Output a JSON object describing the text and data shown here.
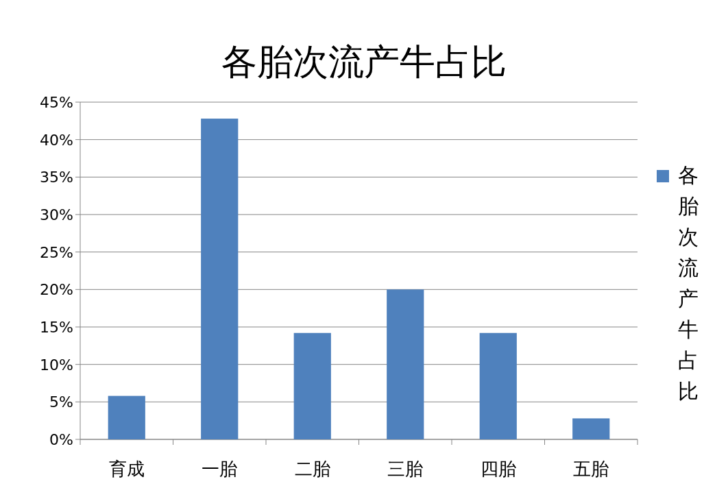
{
  "chart_data": {
    "type": "bar",
    "title": "各胎次流产牛占比",
    "categories": [
      "育成",
      "一胎",
      "二胎",
      "三胎",
      "四胎",
      "五胎"
    ],
    "series": [
      {
        "name": "各胎次流产牛占比",
        "color": "#4f81bd",
        "values": [
          5.8,
          42.8,
          14.2,
          20,
          14.2,
          2.8
        ]
      }
    ],
    "ylim": [
      0,
      45
    ],
    "yticks": [
      {
        "value": 0,
        "label": "0%"
      },
      {
        "value": 5,
        "label": "5%"
      },
      {
        "value": 10,
        "label": "10%"
      },
      {
        "value": 15,
        "label": "15%"
      },
      {
        "value": 20,
        "label": "20%"
      },
      {
        "value": 25,
        "label": "25%"
      },
      {
        "value": 30,
        "label": "30%"
      },
      {
        "value": 35,
        "label": "35%"
      },
      {
        "value": 40,
        "label": "40%"
      },
      {
        "value": 45,
        "label": "45%"
      }
    ],
    "grid": "y",
    "legend": "right"
  }
}
